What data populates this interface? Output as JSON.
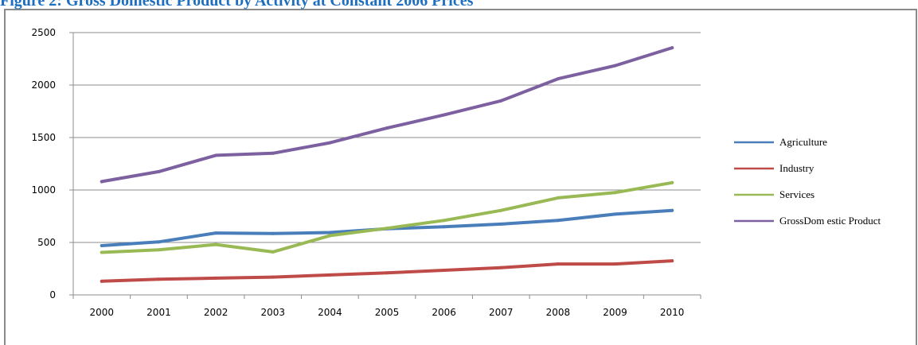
{
  "chart_data": {
    "type": "line",
    "title": "Figure 2: Gross Domestic Product by Activity at Constant 2006 Prices",
    "xlabel": "",
    "ylabel": "",
    "categories": [
      "2000",
      "2001",
      "2002",
      "2003",
      "2004",
      "2005",
      "2006",
      "2007",
      "2008",
      "2009",
      "2010"
    ],
    "ylim": [
      0,
      2500
    ],
    "yticks": [
      0,
      500,
      1000,
      1500,
      2000,
      2500
    ],
    "grid": "horizontal",
    "legend_position": "right",
    "series": [
      {
        "name": "Agriculture",
        "color": "#4a7ebb",
        "values": [
          470,
          505,
          590,
          585,
          595,
          630,
          650,
          675,
          710,
          770,
          805
        ]
      },
      {
        "name": "Industry",
        "color": "#be4b48",
        "values": [
          130,
          150,
          160,
          170,
          190,
          210,
          235,
          260,
          295,
          295,
          325
        ]
      },
      {
        "name": "Services",
        "color": "#98b954",
        "values": [
          405,
          430,
          480,
          410,
          565,
          635,
          710,
          805,
          925,
          975,
          1070
        ]
      },
      {
        "name": "GrossDomesticProduct",
        "color": "#7d60a0",
        "values": [
          1080,
          1175,
          1330,
          1350,
          1450,
          1590,
          1715,
          1850,
          2060,
          2185,
          2355
        ]
      }
    ],
    "legend_labels": [
      "Agriculture",
      "Industry",
      "Services",
      "GrossDom estic Product"
    ]
  }
}
